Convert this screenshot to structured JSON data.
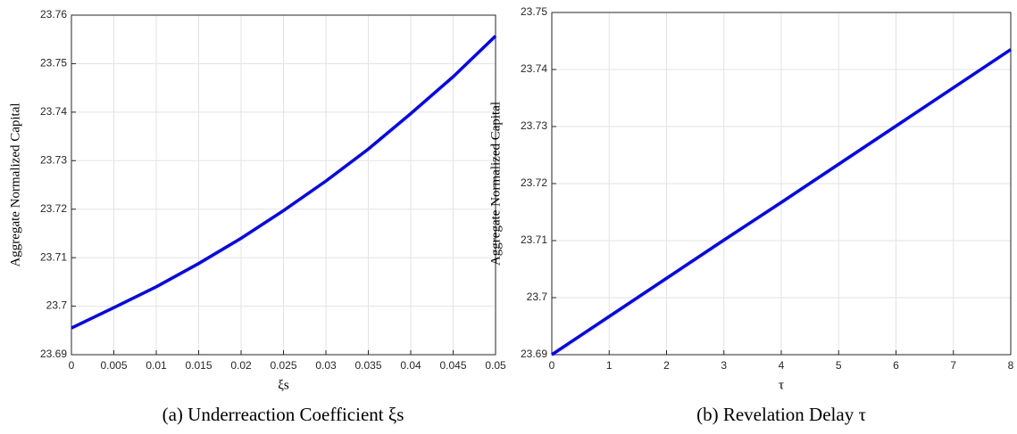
{
  "chart_data": [
    {
      "type": "line",
      "caption": "(a) Underreaction Coefficient ξs",
      "xlabel": "ξs",
      "ylabel": "Aggregate Normalized Capital",
      "x": [
        0,
        0.005,
        0.01,
        0.015,
        0.02,
        0.025,
        0.03,
        0.035,
        0.04,
        0.045,
        0.05
      ],
      "series": [
        {
          "color": "#0000ff",
          "values": [
            23.6955,
            23.6997,
            23.704,
            23.7088,
            23.714,
            23.7197,
            23.7258,
            23.7324,
            23.7397,
            23.7473,
            23.7557
          ]
        }
      ],
      "xlim": [
        0,
        0.05
      ],
      "xticks": [
        0,
        0.005,
        0.01,
        0.015,
        0.02,
        0.025,
        0.03,
        0.035,
        0.04,
        0.045,
        0.05
      ],
      "ylim": [
        23.69,
        23.76
      ],
      "yticks": [
        23.69,
        23.7,
        23.71,
        23.72,
        23.73,
        23.74,
        23.75,
        23.76
      ],
      "grid": true
    },
    {
      "type": "line",
      "caption": "(b) Revelation Delay τ",
      "xlabel": "τ",
      "ylabel": "Aggregate Normalized Capital",
      "x": [
        0,
        1,
        2,
        3,
        4,
        5,
        6,
        7,
        8
      ],
      "series": [
        {
          "color": "#0000ff",
          "values": [
            23.69,
            23.6967,
            23.7034,
            23.7101,
            23.7167,
            23.7234,
            23.7301,
            23.7368,
            23.7435
          ]
        }
      ],
      "xlim": [
        0,
        8
      ],
      "xticks": [
        0,
        1,
        2,
        3,
        4,
        5,
        6,
        7,
        8
      ],
      "ylim": [
        23.69,
        23.75
      ],
      "yticks": [
        23.69,
        23.7,
        23.71,
        23.72,
        23.73,
        23.74,
        23.75
      ],
      "grid": true
    }
  ]
}
